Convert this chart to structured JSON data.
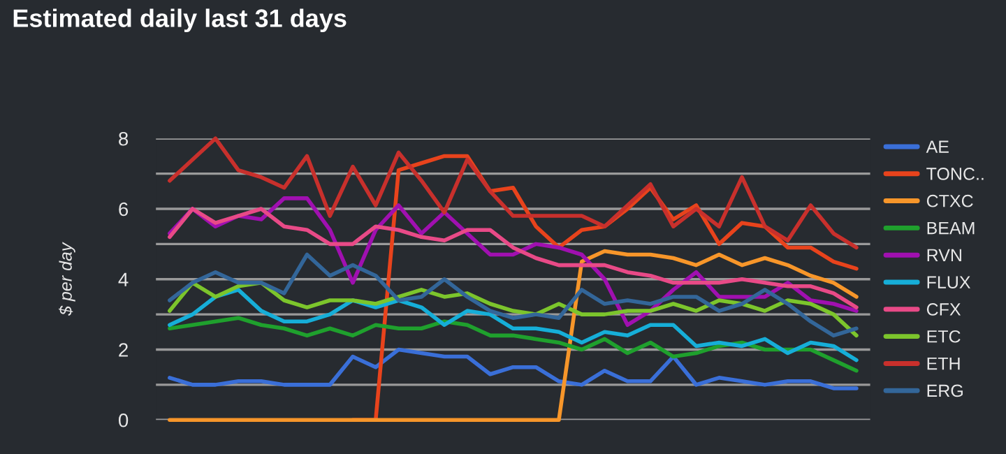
{
  "chart_data": {
    "type": "line",
    "title": "Estimated daily last 31 days",
    "ylabel": "$ per day",
    "categories": [
      null,
      null,
      null,
      null,
      null,
      null,
      null,
      null,
      null,
      null,
      null,
      null,
      null,
      null,
      null,
      null,
      null,
      null,
      null,
      null,
      null,
      null,
      null,
      null,
      null,
      null,
      null,
      null,
      null,
      null,
      null
    ],
    "series": [
      {
        "name": "AE",
        "color": "#3a6fd8",
        "values": [
          1.2,
          1.0,
          1.0,
          1.1,
          1.1,
          1.0,
          1.0,
          1.0,
          1.8,
          1.5,
          2.0,
          1.9,
          1.8,
          1.8,
          1.3,
          1.5,
          1.5,
          1.1,
          1.0,
          1.4,
          1.1,
          1.1,
          1.8,
          1.0,
          1.2,
          1.1,
          1.0,
          1.1,
          1.1,
          0.9,
          0.9
        ]
      },
      {
        "name": "TONC..",
        "color": "#e8431c",
        "values": [
          null,
          null,
          null,
          null,
          null,
          null,
          null,
          null,
          0,
          0,
          7.1,
          7.3,
          7.5,
          7.5,
          6.5,
          6.6,
          5.5,
          4.9,
          5.4,
          5.5,
          6.0,
          6.6,
          5.7,
          6.1,
          5.0,
          5.6,
          5.5,
          4.9,
          4.9,
          4.5,
          4.3
        ]
      },
      {
        "name": "CTXC",
        "color": "#f7962a",
        "values": [
          0,
          0,
          0,
          0,
          0,
          0,
          0,
          0,
          0,
          0,
          0,
          0,
          0,
          0,
          0,
          0,
          0,
          0,
          4.5,
          4.8,
          4.7,
          4.7,
          4.6,
          4.4,
          4.7,
          4.4,
          4.6,
          4.4,
          4.1,
          3.9,
          3.5
        ]
      },
      {
        "name": "BEAM",
        "color": "#1fa02d",
        "values": [
          2.6,
          2.7,
          2.8,
          2.9,
          2.7,
          2.6,
          2.4,
          2.6,
          2.4,
          2.7,
          2.6,
          2.6,
          2.8,
          2.7,
          2.4,
          2.4,
          2.3,
          2.2,
          2.0,
          2.3,
          1.9,
          2.2,
          1.8,
          1.9,
          2.1,
          2.2,
          2.0,
          2.0,
          2.0,
          1.7,
          1.4
        ]
      },
      {
        "name": "RVN",
        "color": "#a010b0",
        "values": [
          5.3,
          6.0,
          5.5,
          5.8,
          5.7,
          6.3,
          6.3,
          5.4,
          3.9,
          5.4,
          6.1,
          5.3,
          5.9,
          5.3,
          4.7,
          4.7,
          5.0,
          4.9,
          4.7,
          4.0,
          2.7,
          3.1,
          3.7,
          4.2,
          3.5,
          3.5,
          3.5,
          3.9,
          3.4,
          3.3,
          3.1
        ]
      },
      {
        "name": "FLUX",
        "color": "#16aed8",
        "values": [
          2.7,
          3.0,
          3.5,
          3.7,
          3.1,
          2.8,
          2.8,
          3.0,
          3.4,
          3.2,
          3.4,
          3.2,
          2.7,
          3.1,
          3.0,
          2.6,
          2.6,
          2.5,
          2.2,
          2.5,
          2.4,
          2.7,
          2.7,
          2.1,
          2.2,
          2.1,
          2.3,
          1.9,
          2.2,
          2.1,
          1.7
        ]
      },
      {
        "name": "CFX",
        "color": "#e84a87",
        "values": [
          5.2,
          6.0,
          5.6,
          5.8,
          6.0,
          5.5,
          5.4,
          5.0,
          5.0,
          5.5,
          5.4,
          5.2,
          5.1,
          5.4,
          5.4,
          4.9,
          4.6,
          4.4,
          4.4,
          4.4,
          4.2,
          4.1,
          3.9,
          3.9,
          3.9,
          4.0,
          3.9,
          3.8,
          3.8,
          3.6,
          3.2
        ]
      },
      {
        "name": "ETC",
        "color": "#7cc52c",
        "values": [
          3.1,
          3.9,
          3.5,
          3.8,
          3.9,
          3.4,
          3.2,
          3.4,
          3.4,
          3.3,
          3.5,
          3.7,
          3.5,
          3.6,
          3.3,
          3.1,
          3.0,
          3.3,
          3.0,
          3.0,
          3.1,
          3.1,
          3.3,
          3.1,
          3.4,
          3.3,
          3.1,
          3.4,
          3.3,
          3.0,
          2.4
        ]
      },
      {
        "name": "ETH",
        "color": "#c8302c",
        "values": [
          6.8,
          7.4,
          8.0,
          7.1,
          6.9,
          6.6,
          7.5,
          5.8,
          7.2,
          6.1,
          7.6,
          6.8,
          5.9,
          7.4,
          6.5,
          5.8,
          5.8,
          5.8,
          5.8,
          5.5,
          6.1,
          6.7,
          5.5,
          6.0,
          5.5,
          6.9,
          5.5,
          5.1,
          6.1,
          5.3,
          4.9
        ]
      },
      {
        "name": "ERG",
        "color": "#336699",
        "values": [
          3.4,
          3.9,
          4.2,
          3.9,
          3.9,
          3.6,
          4.7,
          4.1,
          4.4,
          4.1,
          3.4,
          3.5,
          4.0,
          3.5,
          3.1,
          2.9,
          3.0,
          2.9,
          3.7,
          3.3,
          3.4,
          3.3,
          3.5,
          3.5,
          3.1,
          3.3,
          3.7,
          3.3,
          2.8,
          2.4,
          2.6
        ]
      }
    ],
    "ylim": [
      0,
      8
    ],
    "yticks": [
      0,
      {
        "value": 1,
        "label": null
      },
      2,
      {
        "value": 3,
        "label": null
      },
      4,
      {
        "value": 5,
        "label": null
      },
      6,
      {
        "value": 7,
        "label": null
      },
      8
    ],
    "grid": "y",
    "legend": "right"
  }
}
